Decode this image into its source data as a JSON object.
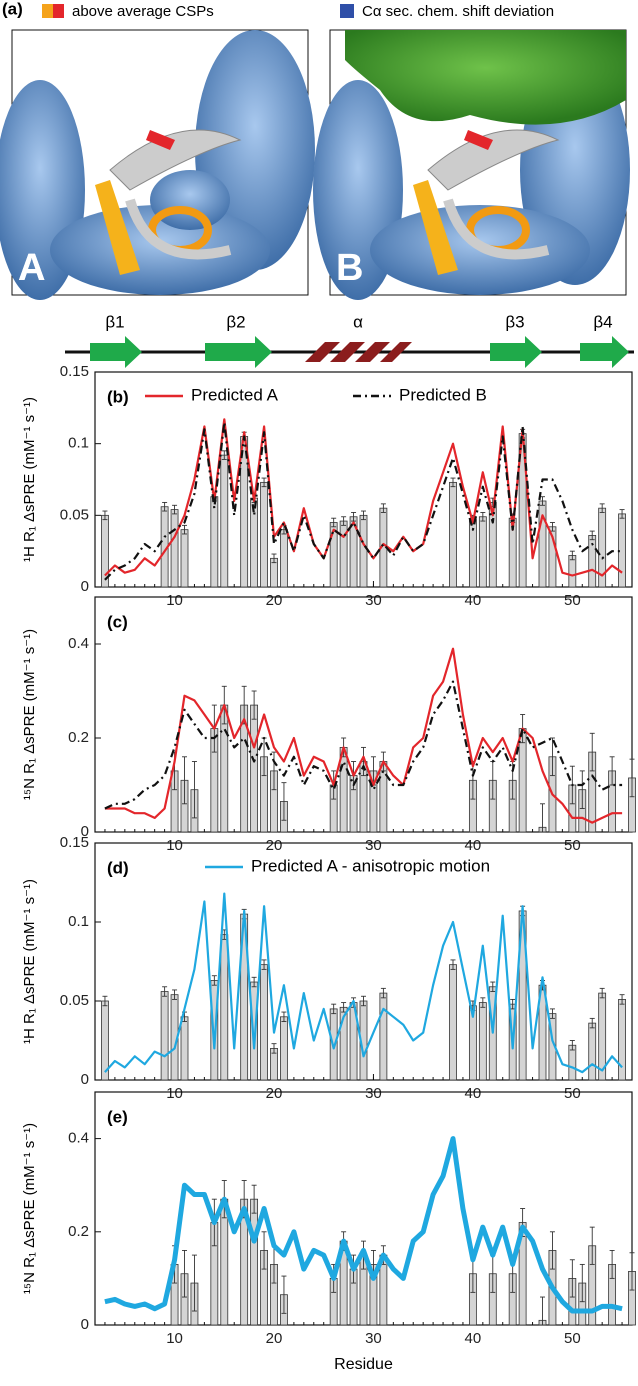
{
  "panel_a": {
    "label": "(a)",
    "legend": [
      "above average CSPs",
      "Cα sec. chem. shift deviation"
    ],
    "image_labels": [
      "A",
      "B"
    ]
  },
  "secondary_structure": [
    "β1",
    "β2",
    "α",
    "β3",
    "β4"
  ],
  "chart_data": [
    {
      "type": "combo",
      "panel_label": "(b)",
      "ylabel": "¹H R₁ ΔsPRE (mM⁻¹ s⁻¹)",
      "xlim": [
        2,
        56
      ],
      "xticks": [
        10,
        20,
        30,
        40,
        50
      ],
      "ylim": [
        0,
        0.15
      ],
      "yticks": [
        0,
        0.05,
        0.1,
        0.15
      ],
      "bars": {
        "color": "#d4d4d4",
        "x": [
          3,
          9,
          10,
          11,
          14,
          15,
          17,
          18,
          19,
          20,
          21,
          26,
          27,
          28,
          29,
          31,
          38,
          40,
          41,
          42,
          44,
          45,
          47,
          48,
          50,
          52,
          53,
          55
        ],
        "values": [
          0.05,
          0.056,
          0.054,
          0.04,
          0.063,
          0.092,
          0.105,
          0.062,
          0.073,
          0.02,
          0.04,
          0.045,
          0.046,
          0.049,
          0.05,
          0.055,
          0.073,
          0.047,
          0.049,
          0.059,
          0.048,
          0.107,
          0.06,
          0.042,
          0.022,
          0.036,
          0.055,
          0.051
        ],
        "errors": [
          0.003,
          0.003,
          0.003,
          0.003,
          0.003,
          0.003,
          0.003,
          0.003,
          0.003,
          0.003,
          0.003,
          0.003,
          0.003,
          0.003,
          0.003,
          0.003,
          0.003,
          0.003,
          0.003,
          0.003,
          0.003,
          0.003,
          0.003,
          0.003,
          0.003,
          0.003,
          0.003,
          0.003
        ]
      },
      "x": [
        3,
        4,
        5,
        6,
        7,
        8,
        9,
        10,
        11,
        12,
        13,
        14,
        15,
        16,
        17,
        18,
        19,
        20,
        21,
        22,
        23,
        24,
        25,
        26,
        27,
        28,
        29,
        30,
        31,
        32,
        33,
        34,
        35,
        36,
        37,
        38,
        39,
        40,
        41,
        42,
        43,
        44,
        45,
        46,
        47,
        48,
        49,
        50,
        51,
        52,
        53,
        54,
        55
      ],
      "series": [
        {
          "name": "Predicted A",
          "color": "#e3262b",
          "style": "solid",
          "values": [
            0.008,
            0.015,
            0.01,
            0.012,
            0.02,
            0.015,
            0.025,
            0.035,
            0.05,
            0.075,
            0.112,
            0.06,
            0.117,
            0.06,
            0.108,
            0.06,
            0.112,
            0.035,
            0.045,
            0.025,
            0.055,
            0.03,
            0.02,
            0.04,
            0.035,
            0.045,
            0.03,
            0.02,
            0.03,
            0.025,
            0.035,
            0.025,
            0.03,
            0.06,
            0.08,
            0.1,
            0.07,
            0.045,
            0.08,
            0.05,
            0.112,
            0.04,
            0.11,
            0.02,
            0.05,
            0.035,
            0.01,
            0.008,
            0.01,
            0.012,
            0.008,
            0.015,
            0.01
          ]
        },
        {
          "name": "Predicted B",
          "color": "#111111",
          "style": "dashed",
          "values": [
            0.005,
            0.012,
            0.015,
            0.02,
            0.03,
            0.025,
            0.035,
            0.04,
            0.045,
            0.065,
            0.11,
            0.055,
            0.115,
            0.05,
            0.105,
            0.05,
            0.108,
            0.03,
            0.045,
            0.025,
            0.05,
            0.03,
            0.02,
            0.04,
            0.035,
            0.045,
            0.03,
            0.02,
            0.03,
            0.022,
            0.035,
            0.025,
            0.03,
            0.05,
            0.07,
            0.09,
            0.065,
            0.04,
            0.07,
            0.045,
            0.105,
            0.04,
            0.112,
            0.03,
            0.075,
            0.075,
            0.06,
            0.04,
            0.025,
            0.03,
            0.02,
            0.025,
            0.025
          ]
        }
      ]
    },
    {
      "type": "combo",
      "panel_label": "(c)",
      "ylabel": "¹⁵N R₁ ΔsPRE (mM⁻¹ s⁻¹)",
      "xlim": [
        2,
        56
      ],
      "xticks": [
        10,
        20,
        30,
        40,
        50
      ],
      "ylim": [
        0,
        0.5
      ],
      "yticks": [
        0,
        0.2,
        0.4
      ],
      "bars": {
        "color": "#d4d4d4",
        "x": [
          10,
          11,
          12,
          14,
          15,
          17,
          18,
          19,
          20,
          21,
          26,
          27,
          28,
          29,
          30,
          31,
          40,
          42,
          44,
          45,
          47,
          48,
          50,
          51,
          52,
          54,
          56
        ],
        "values": [
          0.13,
          0.11,
          0.09,
          0.22,
          0.27,
          0.27,
          0.27,
          0.16,
          0.13,
          0.065,
          0.1,
          0.18,
          0.12,
          0.15,
          0.13,
          0.15,
          0.11,
          0.11,
          0.11,
          0.22,
          0.01,
          0.16,
          0.1,
          0.09,
          0.17,
          0.13,
          0.115
        ],
        "errors": [
          0.04,
          0.05,
          0.06,
          0.05,
          0.04,
          0.04,
          0.03,
          0.04,
          0.04,
          0.04,
          0.03,
          0.02,
          0.03,
          0.03,
          0.03,
          0.02,
          0.04,
          0.04,
          0.04,
          0.03,
          0.05,
          0.04,
          0.04,
          0.04,
          0.04,
          0.03,
          0.04
        ]
      },
      "x": [
        3,
        4,
        5,
        6,
        7,
        8,
        9,
        10,
        11,
        12,
        13,
        14,
        15,
        16,
        17,
        18,
        19,
        20,
        21,
        22,
        23,
        24,
        25,
        26,
        27,
        28,
        29,
        30,
        31,
        32,
        33,
        34,
        35,
        36,
        37,
        38,
        39,
        40,
        41,
        42,
        43,
        44,
        45,
        46,
        47,
        48,
        49,
        50,
        51,
        52,
        53,
        54,
        55
      ],
      "series": [
        {
          "color": "#e3262b",
          "style": "solid",
          "values": [
            0.05,
            0.05,
            0.05,
            0.04,
            0.04,
            0.03,
            0.05,
            0.15,
            0.29,
            0.28,
            0.25,
            0.22,
            0.27,
            0.2,
            0.24,
            0.18,
            0.25,
            0.18,
            0.15,
            0.2,
            0.12,
            0.16,
            0.15,
            0.1,
            0.18,
            0.12,
            0.16,
            0.1,
            0.15,
            0.12,
            0.1,
            0.18,
            0.2,
            0.29,
            0.32,
            0.39,
            0.25,
            0.14,
            0.2,
            0.17,
            0.2,
            0.15,
            0.22,
            0.2,
            0.13,
            0.08,
            0.06,
            0.03,
            0.03,
            0.02,
            0.03,
            0.04,
            0.04
          ]
        },
        {
          "color": "#111111",
          "style": "dashed",
          "values": [
            0.05,
            0.06,
            0.06,
            0.07,
            0.09,
            0.1,
            0.12,
            0.18,
            0.26,
            0.23,
            0.2,
            0.2,
            0.22,
            0.18,
            0.2,
            0.15,
            0.2,
            0.15,
            0.12,
            0.16,
            0.1,
            0.14,
            0.13,
            0.09,
            0.15,
            0.1,
            0.14,
            0.09,
            0.13,
            0.1,
            0.1,
            0.15,
            0.18,
            0.25,
            0.28,
            0.32,
            0.22,
            0.12,
            0.18,
            0.15,
            0.18,
            0.13,
            0.22,
            0.18,
            0.19,
            0.2,
            0.15,
            0.1,
            0.1,
            0.12,
            0.09,
            0.1,
            0.1
          ]
        }
      ]
    },
    {
      "type": "combo",
      "panel_label": "(d)",
      "ylabel": "¹H R₁ ΔsPRE (mM⁻¹ s⁻¹)",
      "xlim": [
        2,
        56
      ],
      "xticks": [
        10,
        20,
        30,
        40,
        50
      ],
      "ylim": [
        0,
        0.15
      ],
      "yticks": [
        0,
        0.05,
        0.1,
        0.15
      ],
      "bars": {
        "color": "#d4d4d4",
        "x": [
          3,
          9,
          10,
          11,
          14,
          15,
          17,
          18,
          19,
          20,
          21,
          26,
          27,
          28,
          29,
          31,
          38,
          40,
          41,
          42,
          44,
          45,
          47,
          48,
          50,
          52,
          53,
          55
        ],
        "values": [
          0.05,
          0.056,
          0.054,
          0.04,
          0.063,
          0.092,
          0.105,
          0.062,
          0.073,
          0.02,
          0.04,
          0.045,
          0.046,
          0.049,
          0.05,
          0.055,
          0.073,
          0.047,
          0.049,
          0.059,
          0.048,
          0.107,
          0.06,
          0.042,
          0.022,
          0.036,
          0.055,
          0.051
        ],
        "errors": [
          0.003,
          0.003,
          0.003,
          0.003,
          0.003,
          0.003,
          0.003,
          0.003,
          0.003,
          0.003,
          0.003,
          0.003,
          0.003,
          0.003,
          0.003,
          0.003,
          0.003,
          0.003,
          0.003,
          0.003,
          0.003,
          0.003,
          0.003,
          0.003,
          0.003,
          0.003,
          0.003,
          0.003
        ]
      },
      "x": [
        3,
        4,
        5,
        6,
        7,
        8,
        9,
        10,
        11,
        12,
        13,
        14,
        15,
        16,
        17,
        18,
        19,
        20,
        21,
        22,
        23,
        24,
        25,
        26,
        27,
        28,
        29,
        30,
        31,
        32,
        33,
        34,
        35,
        36,
        37,
        38,
        39,
        40,
        41,
        42,
        43,
        44,
        45,
        46,
        47,
        48,
        49,
        50,
        51,
        52,
        53,
        54,
        55
      ],
      "series": [
        {
          "name": "Predicted A - anisotropic motion",
          "color": "#1fa8e0",
          "style": "solid",
          "values": [
            0.005,
            0.012,
            0.008,
            0.015,
            0.01,
            0.018,
            0.015,
            0.02,
            0.045,
            0.07,
            0.113,
            0.02,
            0.118,
            0.02,
            0.107,
            0.02,
            0.11,
            0.03,
            0.06,
            0.02,
            0.055,
            0.025,
            0.045,
            0.02,
            0.04,
            0.05,
            0.015,
            0.03,
            0.045,
            0.04,
            0.035,
            0.025,
            0.03,
            0.06,
            0.085,
            0.1,
            0.07,
            0.04,
            0.085,
            0.03,
            0.104,
            0.02,
            0.11,
            0.02,
            0.065,
            0.025,
            0.01,
            0.008,
            0.005,
            0.01,
            0.006,
            0.015,
            0.008
          ]
        }
      ]
    },
    {
      "type": "combo",
      "panel_label": "(e)",
      "ylabel": "¹⁵N R₁ ΔsPRE (mM⁻¹ s⁻¹)",
      "xlabel": "Residue",
      "xlim": [
        2,
        56
      ],
      "xticks": [
        10,
        20,
        30,
        40,
        50
      ],
      "ylim": [
        0,
        0.5
      ],
      "yticks": [
        0,
        0.2,
        0.4
      ],
      "bars": {
        "color": "#d4d4d4",
        "x": [
          10,
          11,
          12,
          14,
          15,
          17,
          18,
          19,
          20,
          21,
          26,
          27,
          28,
          29,
          30,
          31,
          40,
          42,
          44,
          45,
          47,
          48,
          50,
          51,
          52,
          54,
          56
        ],
        "values": [
          0.13,
          0.11,
          0.09,
          0.22,
          0.27,
          0.27,
          0.27,
          0.16,
          0.13,
          0.065,
          0.1,
          0.18,
          0.12,
          0.15,
          0.13,
          0.15,
          0.11,
          0.11,
          0.11,
          0.22,
          0.01,
          0.16,
          0.1,
          0.09,
          0.17,
          0.13,
          0.115
        ],
        "errors": [
          0.04,
          0.05,
          0.06,
          0.05,
          0.04,
          0.04,
          0.03,
          0.04,
          0.04,
          0.04,
          0.03,
          0.02,
          0.03,
          0.03,
          0.03,
          0.02,
          0.04,
          0.04,
          0.04,
          0.03,
          0.05,
          0.04,
          0.04,
          0.04,
          0.04,
          0.03,
          0.04
        ]
      },
      "x": [
        3,
        4,
        5,
        6,
        7,
        8,
        9,
        10,
        11,
        12,
        13,
        14,
        15,
        16,
        17,
        18,
        19,
        20,
        21,
        22,
        23,
        24,
        25,
        26,
        27,
        28,
        29,
        30,
        31,
        32,
        33,
        34,
        35,
        36,
        37,
        38,
        39,
        40,
        41,
        42,
        43,
        44,
        45,
        46,
        47,
        48,
        49,
        50,
        51,
        52,
        53,
        54,
        55
      ],
      "series": [
        {
          "color": "#1fa8e0",
          "style": "thick",
          "values": [
            0.05,
            0.055,
            0.045,
            0.04,
            0.045,
            0.035,
            0.045,
            0.14,
            0.3,
            0.28,
            0.28,
            0.22,
            0.27,
            0.2,
            0.25,
            0.18,
            0.25,
            0.17,
            0.15,
            0.2,
            0.12,
            0.16,
            0.15,
            0.1,
            0.18,
            0.12,
            0.16,
            0.1,
            0.15,
            0.12,
            0.1,
            0.18,
            0.2,
            0.28,
            0.32,
            0.4,
            0.25,
            0.14,
            0.21,
            0.15,
            0.21,
            0.13,
            0.21,
            0.18,
            0.12,
            0.08,
            0.05,
            0.03,
            0.03,
            0.03,
            0.04,
            0.04,
            0.035
          ]
        }
      ]
    }
  ]
}
